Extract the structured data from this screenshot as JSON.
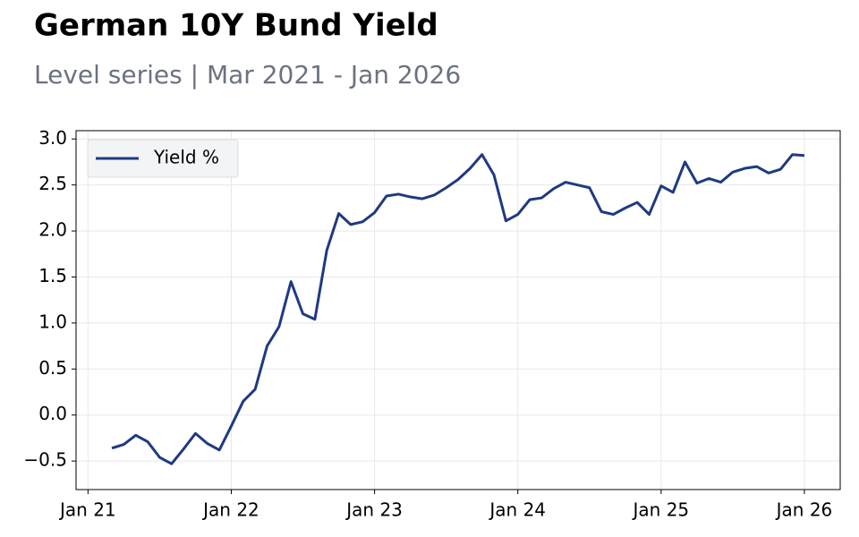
{
  "chart_data": {
    "type": "line",
    "title": "German 10Y Bund Yield",
    "subtitle": "Level series | Mar 2021 - Jan 2026",
    "x": [
      "2021-03",
      "2021-04",
      "2021-05",
      "2021-06",
      "2021-07",
      "2021-08",
      "2021-09",
      "2021-10",
      "2021-11",
      "2021-12",
      "2022-01",
      "2022-02",
      "2022-03",
      "2022-04",
      "2022-05",
      "2022-06",
      "2022-07",
      "2022-08",
      "2022-09",
      "2022-10",
      "2022-11",
      "2022-12",
      "2023-01",
      "2023-02",
      "2023-03",
      "2023-04",
      "2023-05",
      "2023-06",
      "2023-07",
      "2023-08",
      "2023-09",
      "2023-10",
      "2023-11",
      "2023-12",
      "2024-01",
      "2024-02",
      "2024-03",
      "2024-04",
      "2024-05",
      "2024-06",
      "2024-07",
      "2024-08",
      "2024-09",
      "2024-10",
      "2024-11",
      "2024-12",
      "2025-01",
      "2025-02",
      "2025-03",
      "2025-04",
      "2025-05",
      "2025-06",
      "2025-07",
      "2025-08",
      "2025-09",
      "2025-10",
      "2025-11",
      "2025-12",
      "2026-01"
    ],
    "series": [
      {
        "name": "Yield %",
        "color": "#1f3a82",
        "values": [
          -0.36,
          -0.32,
          -0.22,
          -0.29,
          -0.46,
          -0.53,
          -0.37,
          -0.2,
          -0.31,
          -0.38,
          -0.12,
          0.15,
          0.28,
          0.75,
          0.96,
          1.45,
          1.1,
          1.04,
          1.79,
          2.19,
          2.07,
          2.1,
          2.2,
          2.38,
          2.4,
          2.37,
          2.35,
          2.39,
          2.47,
          2.56,
          2.68,
          2.83,
          2.61,
          2.11,
          2.18,
          2.34,
          2.36,
          2.46,
          2.53,
          2.5,
          2.47,
          2.21,
          2.18,
          2.25,
          2.31,
          2.18,
          2.49,
          2.42,
          2.75,
          2.52,
          2.57,
          2.53,
          2.64,
          2.68,
          2.7,
          2.63,
          2.67,
          2.83,
          2.82
        ]
      }
    ],
    "xlim": [
      "2020-12",
      "2026-04"
    ],
    "xticks": [
      {
        "value": "2021-01",
        "label": "Jan 21"
      },
      {
        "value": "2022-01",
        "label": "Jan 22"
      },
      {
        "value": "2023-01",
        "label": "Jan 23"
      },
      {
        "value": "2024-01",
        "label": "Jan 24"
      },
      {
        "value": "2025-01",
        "label": "Jan 25"
      },
      {
        "value": "2026-01",
        "label": "Jan 26"
      }
    ],
    "ylim": [
      -0.81,
      3.09
    ],
    "yticks": [
      {
        "value": -0.5,
        "label": "−0.5"
      },
      {
        "value": 0,
        "label": "0.0"
      },
      {
        "value": 0.5,
        "label": "0.5"
      },
      {
        "value": 1,
        "label": "1.0"
      },
      {
        "value": 1.5,
        "label": "1.5"
      },
      {
        "value": 2,
        "label": "2.0"
      },
      {
        "value": 2.5,
        "label": "2.5"
      },
      {
        "value": 3,
        "label": "3.0"
      }
    ],
    "grid": true,
    "legend": "upper left"
  }
}
